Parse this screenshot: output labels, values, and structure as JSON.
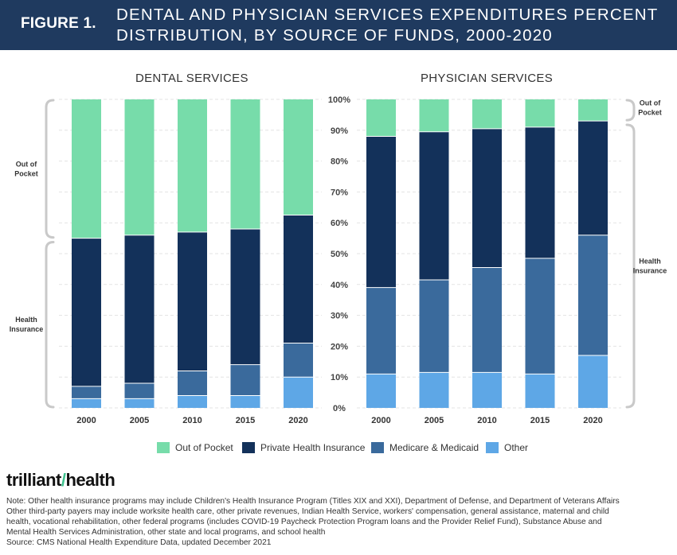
{
  "header": {
    "figure_label": "FIGURE 1.",
    "title_line1": "DENTAL AND PHYSICIAN SERVICES EXPENDITURES PERCENT",
    "title_line2": "DISTRIBUTION, BY SOURCE OF FUNDS, 2000-2020"
  },
  "colors": {
    "header_bg": "#1f3a5f",
    "out_of_pocket": "#77dcaa",
    "private_health_insurance": "#13315a",
    "medicare_medicaid": "#3a6a9c",
    "other": "#5ea7e6",
    "bracket": "#c9c9c9"
  },
  "legend": {
    "items": [
      {
        "label": "Out of Pocket",
        "color": "#77dcaa"
      },
      {
        "label": "Private Health Insurance",
        "color": "#13315a"
      },
      {
        "label": "Medicare & Medicaid",
        "color": "#3a6a9c"
      },
      {
        "label": "Other",
        "color": "#5ea7e6"
      }
    ]
  },
  "chart_data": [
    {
      "type": "bar",
      "stacked": true,
      "title": "DENTAL SERVICES",
      "categories": [
        "2000",
        "2005",
        "2010",
        "2015",
        "2020"
      ],
      "ylim": [
        0,
        100
      ],
      "series": [
        {
          "name": "Other",
          "values": [
            3,
            3,
            4,
            4,
            10
          ]
        },
        {
          "name": "Medicare & Medicaid",
          "values": [
            4,
            5,
            8,
            10,
            11
          ]
        },
        {
          "name": "Private Health Insurance",
          "values": [
            48,
            48,
            45,
            44,
            41.5
          ]
        },
        {
          "name": "Out of Pocket",
          "values": [
            45,
            44,
            43,
            42,
            37.5
          ]
        }
      ],
      "brackets": [
        {
          "label_lines": [
            "Out of",
            "Pocket"
          ],
          "from": 55,
          "to": 100,
          "side": "left"
        },
        {
          "label_lines": [
            "Health",
            "Insurance"
          ],
          "from": 0,
          "to": 54,
          "side": "left"
        }
      ]
    },
    {
      "type": "bar",
      "stacked": true,
      "title": "PHYSICIAN SERVICES",
      "categories": [
        "2000",
        "2005",
        "2010",
        "2015",
        "2020"
      ],
      "ylim": [
        0,
        100
      ],
      "yticks": [
        "0%",
        "10%",
        "20%",
        "30%",
        "40%",
        "50%",
        "60%",
        "70%",
        "80%",
        "90%",
        "100%"
      ],
      "series": [
        {
          "name": "Other",
          "values": [
            11,
            11.5,
            11.5,
            11,
            17
          ]
        },
        {
          "name": "Medicare & Medicaid",
          "values": [
            28,
            30,
            34,
            37.5,
            39
          ]
        },
        {
          "name": "Private Health Insurance",
          "values": [
            49,
            48,
            45,
            42.5,
            37
          ]
        },
        {
          "name": "Out of Pocket",
          "values": [
            12,
            10.5,
            9.5,
            9,
            7
          ]
        }
      ],
      "brackets": [
        {
          "label_lines": [
            "Out of",
            "Pocket"
          ],
          "from": 93,
          "to": 100,
          "side": "right"
        },
        {
          "label_lines": [
            "Health",
            "Insurance"
          ],
          "from": 0,
          "to": 92,
          "side": "right"
        }
      ]
    }
  ],
  "brand": {
    "name_part1": "trilliant",
    "name_part2": "health"
  },
  "notes": {
    "line1": "Note: Other health insurance programs may include Children's Health Insurance Program (Titles XIX and XXI), Department of Defense, and Department of Veterans Affairs",
    "line2": "Other third-party payers may include worksite health care, other private revenues, Indian Health Service, workers' compensation, general assistance, maternal and child",
    "line3": "health, vocational rehabilitation, other federal programs (includes COVID-19 Paycheck Protection Program loans and the Provider Relief Fund), Substance Abuse and",
    "line4": "Mental Health Services Administration, other state and local programs, and school health",
    "line5": "Source: CMS National Health Expenditure Data, updated December 2021"
  }
}
